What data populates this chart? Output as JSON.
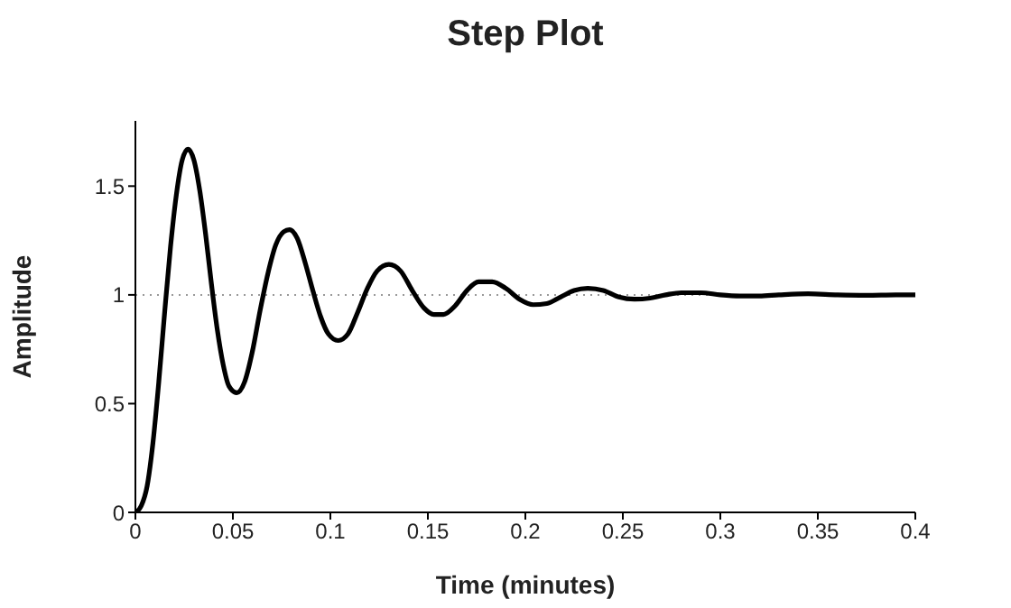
{
  "chart_data": {
    "type": "line",
    "title": "Step Plot",
    "xlabel": "Time (minutes)",
    "ylabel": "Amplitude",
    "x": [
      0,
      0.003,
      0.006,
      0.009,
      0.012,
      0.015,
      0.018,
      0.021,
      0.024,
      0.027,
      0.03,
      0.033,
      0.036,
      0.039,
      0.042,
      0.045,
      0.048,
      0.052,
      0.056,
      0.06,
      0.064,
      0.068,
      0.072,
      0.076,
      0.079,
      0.083,
      0.087,
      0.091,
      0.095,
      0.099,
      0.104,
      0.109,
      0.114,
      0.119,
      0.124,
      0.13,
      0.136,
      0.142,
      0.148,
      0.153,
      0.158,
      0.164,
      0.17,
      0.176,
      0.183,
      0.19,
      0.197,
      0.204,
      0.211,
      0.218,
      0.225,
      0.232,
      0.24,
      0.248,
      0.256,
      0.264,
      0.272,
      0.28,
      0.29,
      0.3,
      0.31,
      0.32,
      0.33,
      0.345,
      0.36,
      0.375,
      0.39,
      0.4
    ],
    "series": [
      {
        "color": "#000000",
        "values": [
          0,
          0.03,
          0.12,
          0.32,
          0.6,
          0.92,
          1.22,
          1.46,
          1.62,
          1.67,
          1.62,
          1.48,
          1.28,
          1.05,
          0.84,
          0.68,
          0.58,
          0.55,
          0.6,
          0.74,
          0.93,
          1.1,
          1.23,
          1.29,
          1.3,
          1.26,
          1.15,
          1.02,
          0.9,
          0.82,
          0.79,
          0.82,
          0.92,
          1.03,
          1.11,
          1.14,
          1.11,
          1.02,
          0.94,
          0.91,
          0.91,
          0.95,
          1.02,
          1.06,
          1.06,
          1.03,
          0.98,
          0.955,
          0.96,
          0.99,
          1.02,
          1.03,
          1.02,
          0.99,
          0.98,
          0.985,
          1.0,
          1.01,
          1.01,
          1.0,
          0.995,
          0.995,
          1.0,
          1.005,
          1.0,
          0.998,
          1.0,
          1.0
        ]
      }
    ],
    "xlim": [
      0,
      0.4
    ],
    "xticks": [
      0,
      0.05,
      0.1,
      0.15,
      0.2,
      0.25,
      0.3,
      0.35,
      0.4
    ],
    "ylim": [
      0,
      1.8
    ],
    "yticks": [
      0,
      0.5,
      1,
      1.5
    ],
    "ref_lines": [
      {
        "axis": "y",
        "value": 1,
        "color": "#999999",
        "line_style": "dotted"
      }
    ],
    "marker": "none",
    "line_style": "solid"
  }
}
